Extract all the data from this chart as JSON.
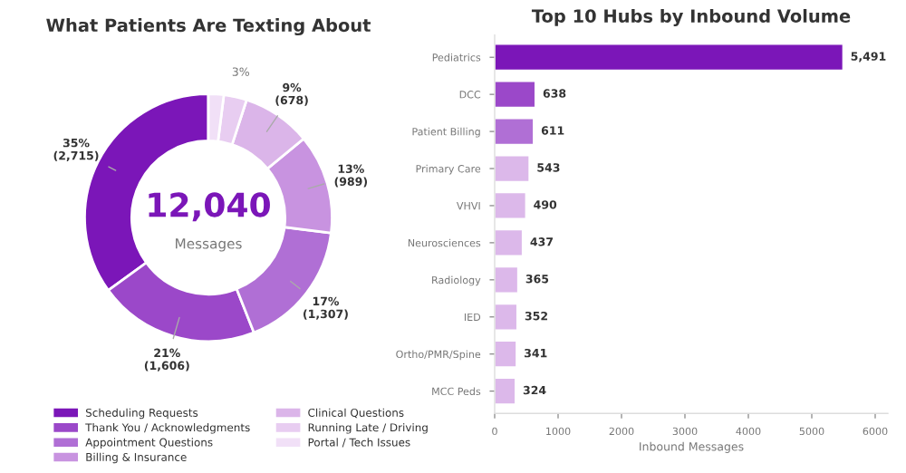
{
  "chart_data": [
    {
      "type": "donut",
      "title": "What Patients Are Texting About",
      "categories": [
        "Scheduling Requests",
        "Thank You / Acknowledgments",
        "Appointment Questions",
        "Billing & Insurance",
        "Clinical Questions",
        "Running Late / Driving",
        "Portal / Tech Issues"
      ],
      "values": [
        35,
        21,
        17,
        13,
        9,
        3,
        2
      ],
      "value_labels": [
        "35%\n(2,715)",
        "21%\n(1,606)",
        "17%\n(1,307)",
        "13%\n(989)",
        "9%\n(678)",
        "3%",
        null
      ],
      "colors": [
        "#7b16b8",
        "#9b48c9",
        "#b06fd5",
        "#c893e0",
        "#dbb5e9",
        "#e8cdf1",
        "#f1e0f7"
      ],
      "annotations": [
        "12,040",
        "Messages"
      ],
      "legend": "bottom"
    },
    {
      "type": "bar",
      "title": "Top 10 Hubs by Inbound Volume",
      "orientation": "horizontal",
      "categories": [
        "Pediatrics",
        "DCC",
        "Patient Billing",
        "Primary Care",
        "VHVI",
        "Neurosciences",
        "Radiology",
        "IED",
        "Ortho/PMR/Spine",
        "MCC Peds"
      ],
      "values": [
        5491,
        638,
        611,
        543,
        490,
        437,
        365,
        352,
        341,
        324
      ],
      "value_labels": [
        "5,491",
        "638",
        "611",
        "543",
        "490",
        "437",
        "365",
        "352",
        "341",
        "324"
      ],
      "colors": [
        "#7b16b8",
        "#9b48c9",
        "#b06fd5",
        "#dcb8ea",
        "#dcb8ea",
        "#dcb8ea",
        "#dcb8ea",
        "#dcb8ea",
        "#dcb8ea",
        "#dcb8ea"
      ],
      "xlabel": "Inbound Messages",
      "xlim": [
        0,
        6200
      ],
      "xticks": [
        0,
        1000,
        2000,
        3000,
        4000,
        5000,
        6000
      ],
      "grid": false
    }
  ]
}
